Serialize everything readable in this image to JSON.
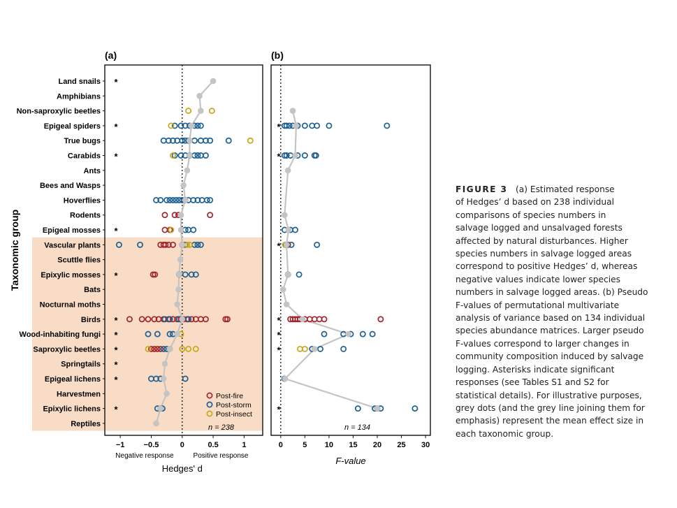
{
  "panel_a": {
    "label": "(a)"
  },
  "panel_b": {
    "label": "(b)"
  },
  "y_axis_title": "Taxonomic group",
  "colors": {
    "fire": "#a3242b",
    "storm": "#1b5f93",
    "insect": "#c8a718",
    "mean": "#c4c4c4",
    "highlight": "#f8dcc6"
  },
  "legend": [
    {
      "key": "fire",
      "label": "Post-fire"
    },
    {
      "key": "storm",
      "label": "Post-storm"
    },
    {
      "key": "insect",
      "label": "Post-insect"
    }
  ],
  "chart_data": [
    {
      "type": "scatter",
      "panel": "(a)",
      "xlabel": "Hedges' d",
      "xlim": [
        -1.25,
        1.3
      ],
      "x_ticks": [
        -1,
        -0.5,
        0,
        0.5,
        1
      ],
      "x_tick_labels": [
        "−1",
        "−0.5",
        "0",
        "0.5",
        "1"
      ],
      "zero_line": 0,
      "left_annotation": "Negative response",
      "right_annotation": "Positive response",
      "n_label": "n = 238",
      "categories": [
        "Land snails",
        "Amphibians",
        "Non-saproxylic beetles",
        "Epigeal spiders",
        "True bugs",
        "Carabids",
        "Ants",
        "Bees and Wasps",
        "Hoverflies",
        "Rodents",
        "Epigeal mosses",
        "Vascular plants",
        "Scuttle flies",
        "Epixylic mosses",
        "Bats",
        "Nocturnal moths",
        "Birds",
        "Wood-inhabiting fungi",
        "Saproxylic beetles",
        "Springtails",
        "Epigeal lichens",
        "Harvestmen",
        "Epixylic lichens",
        "Reptiles"
      ],
      "highlighted_categories": [
        "Vascular plants",
        "Scuttle flies",
        "Epixylic mosses",
        "Bats",
        "Nocturnal moths",
        "Birds",
        "Wood-inhabiting fungi",
        "Saproxylic beetles",
        "Springtails",
        "Epigeal lichens",
        "Harvestmen",
        "Epixylic lichens",
        "Reptiles"
      ],
      "significant": [
        "Land snails",
        "Epigeal spiders",
        "Carabids",
        "Epigeal mosses",
        "Epixylic mosses",
        "Birds",
        "Wood-inhabiting fungi",
        "Saproxylic beetles",
        "Springtails",
        "Epigeal lichens",
        "Epixylic lichens"
      ],
      "means": [
        0.5,
        0.28,
        0.3,
        0.15,
        0.12,
        0.12,
        0.08,
        0.02,
        0.05,
        -0.02,
        -0.02,
        0.0,
        -0.03,
        -0.05,
        -0.06,
        -0.08,
        0.0,
        -0.08,
        -0.2,
        -0.28,
        -0.3,
        -0.25,
        -0.35,
        -0.42
      ],
      "series": [
        {
          "name": "Post-fire",
          "color_key": "fire",
          "points": {
            "Rodents": [
              -0.28,
              -0.12,
              -0.06,
              0.45
            ],
            "Epigeal mosses": [
              -0.28,
              -0.2
            ],
            "Vascular plants": [
              -0.35,
              -0.3,
              -0.27,
              -0.22,
              -0.15,
              0.0
            ],
            "Epixylic mosses": [
              -0.47,
              -0.44
            ],
            "Birds": [
              -0.85,
              -0.65,
              -0.55,
              -0.45,
              -0.38,
              -0.3,
              -0.22,
              -0.15,
              -0.08,
              -0.02,
              0.02,
              0.08,
              0.15,
              0.22,
              0.3,
              0.38,
              0.7,
              0.73
            ],
            "Saproxylic beetles": [
              -0.5,
              -0.45,
              -0.4,
              -0.35
            ]
          }
        },
        {
          "name": "Post-storm",
          "color_key": "storm",
          "points": {
            "Epigeal spiders": [
              -0.12,
              -0.02,
              0.05,
              0.12,
              0.2,
              0.25,
              0.3
            ],
            "True bugs": [
              -0.3,
              -0.22,
              -0.15,
              -0.08,
              0.0,
              0.05,
              0.1,
              0.2,
              0.3,
              0.38,
              0.45,
              0.75
            ],
            "Carabids": [
              -0.12,
              -0.02,
              0.05,
              0.12,
              0.2,
              0.25,
              0.3,
              0.38
            ],
            "Hoverflies": [
              -0.42,
              -0.35,
              -0.25,
              -0.2,
              -0.15,
              -0.1,
              -0.05,
              0.0,
              0.05,
              0.1,
              0.18,
              0.25,
              0.32,
              0.4,
              0.45
            ],
            "Epigeal mosses": [
              0.05,
              0.1,
              0.18
            ],
            "Vascular plants": [
              -1.02,
              -0.68,
              0.05,
              0.2,
              0.25,
              0.3
            ],
            "Epixylic mosses": [
              -0.05,
              0.05,
              0.15,
              0.22
            ],
            "Birds": [
              -0.28,
              -0.2,
              -0.05,
              0.1
            ],
            "Wood-inhabiting fungi": [
              -0.55,
              -0.4,
              -0.2,
              -0.15
            ],
            "Saproxylic beetles": [
              -0.3,
              -0.25
            ],
            "Epigeal lichens": [
              -0.5,
              -0.42,
              -0.35,
              0.05
            ],
            "Epixylic lichens": [
              -0.4,
              -0.35,
              -0.32
            ]
          }
        },
        {
          "name": "Post-insect",
          "color_key": "insect",
          "points": {
            "Non-saproxylic beetles": [
              0.1,
              0.48
            ],
            "Epigeal spiders": [
              -0.18
            ],
            "True bugs": [
              1.1
            ],
            "Carabids": [
              -0.15
            ],
            "Epigeal mosses": [
              -0.18
            ],
            "Vascular plants": [
              0.08,
              0.12
            ],
            "Wood-inhabiting fungi": [
              -0.02
            ],
            "Saproxylic beetles": [
              -0.55,
              -0.2,
              0.0,
              0.1,
              0.22
            ]
          }
        }
      ]
    },
    {
      "type": "scatter",
      "panel": "(b)",
      "xlabel": "F-value",
      "xlim": [
        -2,
        31
      ],
      "x_ticks": [
        0,
        5,
        10,
        15,
        20,
        25,
        30
      ],
      "x_tick_labels": [
        "0",
        "5",
        "10",
        "15",
        "20",
        "25",
        "30"
      ],
      "zero_line": 0,
      "n_label": "n = 134",
      "significant": [
        "Epigeal spiders",
        "Carabids",
        "Vascular plants",
        "Birds",
        "Wood-inhabiting fungi",
        "Saproxylic beetles",
        "Epixylic lichens"
      ],
      "means": {
        "Non-saproxylic beetles": 2.5,
        "Epigeal spiders": 3.2,
        "Carabids": 3.0,
        "Ants": 1.5,
        "Rodents": 0.8,
        "Epigeal mosses": 1.6,
        "Vascular plants": 1.2,
        "Epixylic mosses": 1.5,
        "Bats": 0.5,
        "Nocturnal moths": 1.2,
        "Birds": 4.5,
        "Wood-inhabiting fungi": 14.0,
        "Saproxylic beetles": 7.0,
        "Epigeal lichens": 0.9,
        "Epixylic lichens": 20.0
      },
      "series": [
        {
          "name": "Post-fire",
          "color_key": "fire",
          "points": {
            "Vascular plants": [
              1.5
            ],
            "Birds": [
              2.0,
              2.5,
              3.0,
              3.5,
              4.0,
              5.0,
              6.0,
              7.0,
              8.0,
              9.0,
              20.7
            ]
          }
        },
        {
          "name": "Post-storm",
          "color_key": "storm",
          "points": {
            "Epigeal spiders": [
              0.8,
              1.2,
              1.8,
              2.5,
              3.5,
              5.0,
              6.5,
              7.5,
              10.0,
              22.0
            ],
            "Carabids": [
              0.8,
              1.2,
              2.0,
              3.5,
              5.0,
              7.0,
              7.3
            ],
            "Epigeal mosses": [
              0.8,
              2.0,
              3.0
            ],
            "Vascular plants": [
              1.0,
              2.2,
              7.5
            ],
            "Epixylic mosses": [
              1.5,
              3.8
            ],
            "Wood-inhabiting fungi": [
              9.0,
              13.0,
              14.5,
              17.0,
              19.0
            ],
            "Saproxylic beetles": [
              6.5,
              8.2,
              13.0
            ],
            "Epigeal lichens": [
              0.8
            ],
            "Epixylic lichens": [
              16.0,
              19.5,
              20.0,
              20.7,
              27.8
            ]
          }
        },
        {
          "name": "Post-insect",
          "color_key": "insect",
          "points": {
            "Vascular plants": [
              0.9
            ],
            "Saproxylic beetles": [
              4.0,
              5.0
            ]
          }
        }
      ]
    }
  ],
  "caption": {
    "label": "FIGURE 3",
    "lines": [
      "(a) Estimated response",
      "of Hedges’ d based on 238 individual",
      "comparisons of species numbers in",
      "salvage logged and unsalvaged forests",
      "affected by natural disturbances. Higher",
      "species numbers in salvage logged areas",
      "correspond to positive Hedges’ d, whereas",
      "negative values indicate lower species",
      "numbers in salvage logged areas. (b) Pseudo",
      "F-values of permutational multivariate",
      "analysis of variance based on 134 individual",
      "species abundance matrices. Larger pseudo",
      "F-values correspond to larger changes in",
      "community composition induced by salvage",
      "logging. Asterisks indicate significant",
      "responses (see Tables S1 and S2 for",
      "statistical details). For illustrative purposes,",
      "grey dots (and the grey line joining them for",
      "emphasis) represent the mean effect size in",
      "each taxonomic group."
    ]
  }
}
